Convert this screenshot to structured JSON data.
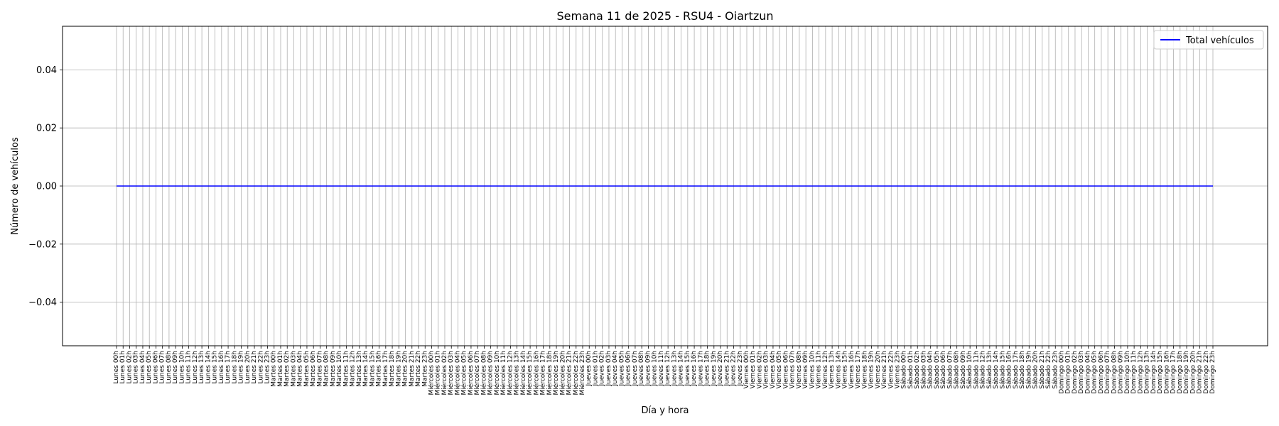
{
  "chart_data": {
    "type": "line",
    "title": "Semana 11 de 2025 - RSU4 - Oiartzun",
    "xlabel": "Día y hora",
    "ylabel": "Número de vehículos",
    "ylim": [
      -0.055,
      0.055
    ],
    "yticks": [
      -0.04,
      -0.02,
      0.0,
      0.02,
      0.04
    ],
    "ytick_labels": [
      "−0.04",
      "−0.02",
      "0.00",
      "0.02",
      "0.04"
    ],
    "grid": true,
    "legend_position": "top-right",
    "days": [
      "Lunes",
      "Martes",
      "Miércoles",
      "Jueves",
      "Viernes",
      "Sábado",
      "Domingo"
    ],
    "hours": [
      "00h",
      "01h",
      "02h",
      "03h",
      "04h",
      "05h",
      "06h",
      "07h",
      "08h",
      "09h",
      "10h",
      "11h",
      "12h",
      "13h",
      "14h",
      "15h",
      "16h",
      "17h",
      "18h",
      "19h",
      "20h",
      "21h",
      "22h",
      "23h"
    ],
    "series": [
      {
        "name": "Total vehículos",
        "color": "#0000ff",
        "constant_value": 0
      }
    ]
  }
}
